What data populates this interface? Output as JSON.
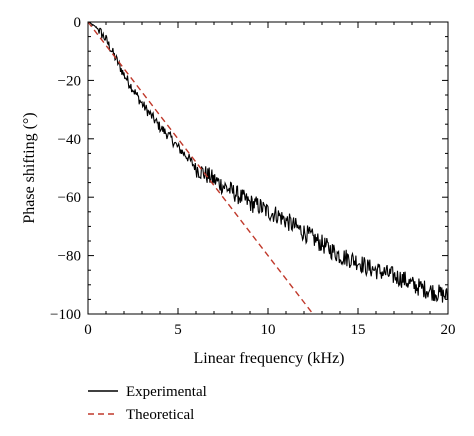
{
  "chart_data": {
    "type": "line",
    "title": "",
    "xlabel": "Linear frequency (kHz)",
    "ylabel": "Phase shifting (°)",
    "xlim": [
      0,
      20
    ],
    "ylim": [
      -100,
      0
    ],
    "x_ticks": [
      0,
      5,
      10,
      15,
      20
    ],
    "y_ticks": [
      0,
      -20,
      -40,
      -60,
      -80,
      -100
    ],
    "x_tick_labels": [
      "0",
      "5",
      "10",
      "15",
      "20"
    ],
    "y_tick_labels": [
      "0",
      "−20",
      "−40",
      "−60",
      "−80",
      "−100"
    ],
    "grid": false,
    "legend_position": "bottom-left-outside",
    "series": [
      {
        "name": "Experimental",
        "color": "#000000",
        "style": "solid",
        "x": [
          0,
          0.5,
          1,
          1.5,
          2,
          2.5,
          3,
          3.5,
          4,
          4.5,
          5,
          5.5,
          6,
          6.5,
          7,
          7.5,
          8,
          8.5,
          9,
          9.5,
          10,
          10.5,
          11,
          11.5,
          12,
          12.5,
          13,
          13.5,
          14,
          14.5,
          15,
          15.5,
          16,
          16.5,
          17,
          17.5,
          18,
          18.5,
          19,
          19.5,
          20
        ],
        "y": [
          0,
          -2,
          -6,
          -12,
          -18,
          -23,
          -28,
          -32,
          -36,
          -39,
          -43,
          -46,
          -50,
          -52,
          -54,
          -56,
          -58,
          -60,
          -62,
          -63,
          -65,
          -66,
          -68,
          -70,
          -72,
          -74,
          -76,
          -78,
          -80,
          -81,
          -82,
          -84,
          -85,
          -86,
          -87,
          -88,
          -90,
          -91,
          -92,
          -93,
          -94
        ]
      },
      {
        "name": "Theoretical",
        "color": "#c0392b",
        "style": "dashed",
        "x": [
          0,
          12.5
        ],
        "y": [
          0,
          -100
        ]
      }
    ]
  }
}
